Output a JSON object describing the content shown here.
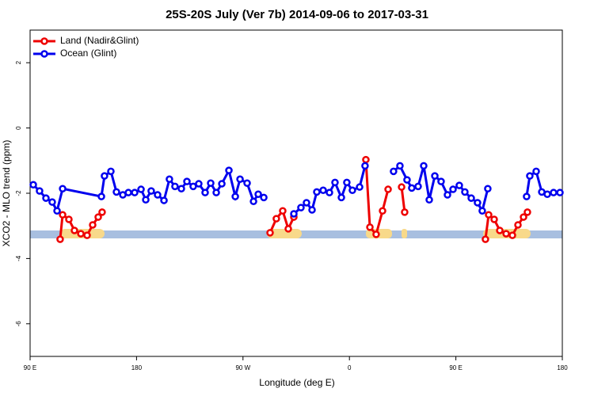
{
  "chart_data": {
    "type": "line",
    "title": "25S-20S July (Ver 7b)   2014-09-06 to 2017-03-31",
    "x_label": "Longitude (deg E)",
    "y_label": "XCO2 - MLO trend (ppm)",
    "xlim": [
      90,
      540
    ],
    "ylim": [
      -7,
      3
    ],
    "xticks": [
      {
        "value": 90,
        "label": "90 E"
      },
      {
        "value": 180,
        "label": "180"
      },
      {
        "value": 270,
        "label": "90 W"
      },
      {
        "value": 360,
        "label": "0"
      },
      {
        "value": 450,
        "label": "90 E"
      },
      {
        "value": 540,
        "label": "180"
      }
    ],
    "yticks": [
      -6,
      -4,
      -2,
      0,
      2
    ],
    "legend": "top-left",
    "series": [
      {
        "name": "Land (Nadir&Glint)",
        "color": "#ee0000",
        "x": [
          115.4,
          117.5,
          122.8,
          127.5,
          132.9,
          138.2,
          142.9,
          147.6,
          150.9,
          null,
          292.9,
          298.2,
          303.6,
          308.3,
          313.0,
          null,
          373.9,
          377.3,
          382.6,
          388.0,
          392.7,
          null,
          404.1,
          406.7,
          null,
          475.0,
          477.7,
          482.4,
          487.1,
          492.5,
          497.8,
          502.5,
          507.2,
          510.5
        ],
        "values": [
          -3.41,
          -2.66,
          -2.8,
          -3.14,
          -3.24,
          -3.29,
          -2.97,
          -2.73,
          -2.58,
          null,
          -3.21,
          -2.78,
          -2.54,
          -3.09,
          -2.73,
          null,
          -0.97,
          -3.04,
          -3.26,
          -2.54,
          -1.88,
          null,
          -1.81,
          -2.58,
          null,
          -3.41,
          -2.66,
          -2.8,
          -3.14,
          -3.24,
          -3.29,
          -2.97,
          -2.73,
          -2.58
        ]
      },
      {
        "name": "Ocean (Glint)",
        "color": "#0000ee",
        "x": [
          92.7,
          98.0,
          103.4,
          108.7,
          112.8,
          117.5,
          150.3,
          152.9,
          158.3,
          163.0,
          168.4,
          173.1,
          178.4,
          183.8,
          187.8,
          192.4,
          197.8,
          203.2,
          207.8,
          212.5,
          217.9,
          222.6,
          227.9,
          232.6,
          238.0,
          242.7,
          247.4,
          252.1,
          258.1,
          263.5,
          267.5,
          273.5,
          278.9,
          282.9,
          287.6,
          null,
          313.0,
          319.0,
          323.7,
          328.4,
          332.4,
          337.8,
          343.1,
          347.8,
          353.2,
          357.8,
          362.5,
          368.6,
          373.2,
          null,
          397.3,
          402.7,
          408.7,
          412.7,
          418.1,
          422.8,
          427.5,
          432.2,
          437.5,
          442.9,
          447.6,
          452.9,
          457.6,
          463.0,
          468.3,
          472.3,
          477.0,
          null,
          509.8,
          512.5,
          517.9,
          522.6,
          527.3,
          532.6,
          538.0
        ],
        "values": [
          -1.74,
          -1.93,
          -2.15,
          -2.27,
          -2.54,
          -1.86,
          -2.1,
          -1.47,
          -1.33,
          -1.96,
          -2.05,
          -1.98,
          -1.98,
          -1.88,
          -2.2,
          -1.93,
          -2.05,
          -2.22,
          -1.57,
          -1.79,
          -1.86,
          -1.64,
          -1.79,
          -1.71,
          -1.98,
          -1.69,
          -1.98,
          -1.71,
          -1.3,
          -2.1,
          -1.57,
          -1.69,
          -2.25,
          -2.03,
          -2.13,
          null,
          -2.63,
          -2.44,
          -2.29,
          -2.51,
          -1.96,
          -1.91,
          -1.98,
          -1.67,
          -2.13,
          -1.67,
          -1.91,
          -1.81,
          -1.16,
          null,
          -1.33,
          -1.16,
          -1.59,
          -1.84,
          -1.79,
          -1.16,
          -2.2,
          -1.47,
          -1.64,
          -2.05,
          -1.88,
          -1.76,
          -1.96,
          -2.15,
          -2.29,
          -2.54,
          -1.86,
          null,
          -2.1,
          -1.47,
          -1.33,
          -1.96,
          -2.03,
          -1.98,
          -1.98
        ]
      }
    ]
  }
}
